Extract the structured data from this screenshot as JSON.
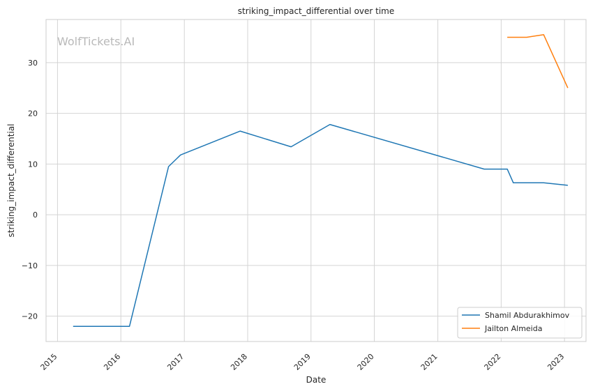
{
  "watermark": "WolfTickets.AI",
  "chart_data": {
    "type": "line",
    "title": "striking_impact_differential over time",
    "xlabel": "Date",
    "ylabel": "striking_impact_differential",
    "x_ticks": [
      "2015",
      "2016",
      "2017",
      "2018",
      "2019",
      "2020",
      "2021",
      "2022",
      "2023"
    ],
    "y_ticks": [
      -20,
      -10,
      0,
      10,
      20,
      30
    ],
    "y_tick_labels": [
      "−20",
      "−10",
      "0",
      "10",
      "20",
      "30"
    ],
    "xlim": [
      "2014-10-27",
      "2023-05-05"
    ],
    "ylim": [
      -25,
      38.5
    ],
    "grid": true,
    "legend_position": "lower right",
    "series": [
      {
        "name": "Shamil Abdurakhimov",
        "color": "#1f77b4",
        "points": [
          {
            "x": "2015-04-01",
            "y": -22.0
          },
          {
            "x": "2016-02-20",
            "y": -22.0
          },
          {
            "x": "2016-10-02",
            "y": 9.5
          },
          {
            "x": "2016-12-10",
            "y": 11.8
          },
          {
            "x": "2017-11-19",
            "y": 16.5
          },
          {
            "x": "2018-09-08",
            "y": 13.4
          },
          {
            "x": "2019-04-20",
            "y": 17.8
          },
          {
            "x": "2021-09-25",
            "y": 9.0
          },
          {
            "x": "2022-02-05",
            "y": 9.0
          },
          {
            "x": "2022-03-12",
            "y": 6.3
          },
          {
            "x": "2022-09-03",
            "y": 6.3
          },
          {
            "x": "2023-01-20",
            "y": 5.8
          }
        ]
      },
      {
        "name": "Jailton Almeida",
        "color": "#ff7f0e",
        "points": [
          {
            "x": "2022-02-05",
            "y": 35.0
          },
          {
            "x": "2022-05-28",
            "y": 35.0
          },
          {
            "x": "2022-09-03",
            "y": 35.5
          },
          {
            "x": "2023-01-20",
            "y": 25.0
          }
        ]
      }
    ]
  }
}
